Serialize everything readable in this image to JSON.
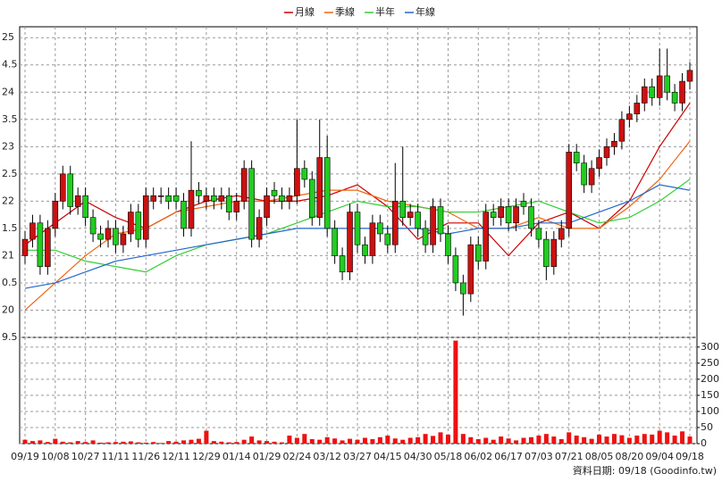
{
  "chart_data": [
    {
      "type": "candlestick",
      "categories": [
        "09/19",
        null,
        null,
        null,
        "10/08",
        null,
        null,
        null,
        "10/27",
        null,
        null,
        null,
        "11/11",
        null,
        null,
        null,
        "11/26",
        null,
        null,
        null,
        "12/11",
        null,
        null,
        null,
        "12/29",
        null,
        null,
        null,
        "01/14",
        null,
        null,
        null,
        "01/29",
        null,
        null,
        null,
        "02/24",
        null,
        null,
        null,
        "03/12",
        null,
        null,
        null,
        "03/27",
        null,
        null,
        null,
        "04/15",
        null,
        null,
        null,
        "04/30",
        null,
        null,
        null,
        "05/18",
        null,
        null,
        null,
        "06/02",
        null,
        null,
        null,
        "06/17",
        null,
        null,
        null,
        "07/03",
        null,
        null,
        null,
        "07/21",
        null,
        null,
        null,
        "08/05",
        null,
        null,
        null,
        "08/20",
        null,
        null,
        null,
        "09/04",
        null,
        null,
        null,
        "09/18"
      ],
      "open": [
        21.0,
        21.3,
        21.6,
        20.8,
        21.5,
        22.0,
        22.5,
        21.9,
        22.1,
        21.7,
        21.4,
        21.3,
        21.5,
        21.2,
        21.4,
        21.8,
        21.3,
        22.0,
        22.1,
        22.1,
        22.1,
        22.0,
        21.5,
        22.2,
        22.0,
        22.1,
        22.0,
        22.1,
        21.8,
        22.0,
        22.6,
        21.3,
        21.7,
        22.2,
        22.1,
        22.0,
        22.1,
        22.6,
        22.4,
        21.7,
        22.8,
        21.5,
        21.0,
        20.7,
        21.8,
        21.2,
        21.0,
        21.6,
        21.4,
        21.2,
        22.0,
        21.7,
        21.8,
        21.5,
        21.2,
        21.9,
        21.4,
        21.0,
        20.5,
        20.3,
        21.2,
        20.9,
        21.8,
        21.7,
        21.9,
        21.6,
        22.0,
        21.9,
        21.5,
        21.3,
        20.8,
        21.3,
        21.5,
        22.9,
        22.7,
        22.3,
        22.6,
        22.8,
        23.0,
        23.1,
        23.5,
        23.6,
        23.8,
        24.1,
        23.9,
        24.3,
        24.0,
        23.8,
        24.2
      ],
      "high": [
        21.45,
        21.75,
        21.75,
        21.65,
        22.15,
        22.65,
        22.65,
        22.25,
        22.25,
        21.85,
        21.55,
        21.65,
        21.65,
        21.55,
        21.95,
        21.95,
        22.25,
        22.25,
        22.25,
        22.25,
        22.25,
        22.15,
        23.1,
        22.35,
        22.25,
        22.25,
        22.25,
        22.25,
        22.15,
        22.75,
        22.75,
        21.85,
        22.25,
        22.35,
        22.25,
        22.25,
        23.5,
        22.75,
        22.55,
        23.5,
        23.2,
        21.65,
        21.15,
        21.95,
        21.95,
        21.35,
        21.75,
        21.75,
        21.55,
        22.7,
        23.0,
        21.95,
        21.95,
        21.65,
        22.05,
        22.05,
        21.55,
        21.15,
        20.65,
        21.35,
        21.35,
        21.95,
        21.95,
        22.05,
        22.05,
        22.05,
        22.15,
        22.05,
        21.65,
        21.45,
        21.45,
        21.65,
        23.05,
        23.05,
        22.85,
        22.75,
        22.95,
        23.15,
        23.25,
        23.65,
        23.75,
        23.95,
        24.25,
        24.25,
        24.8,
        24.8,
        24.15,
        24.35,
        24.55
      ],
      "low": [
        20.85,
        21.15,
        20.65,
        20.65,
        21.35,
        21.85,
        21.75,
        21.75,
        21.55,
        21.25,
        21.15,
        21.15,
        21.05,
        21.05,
        21.25,
        21.15,
        21.15,
        21.85,
        21.95,
        21.85,
        21.85,
        21.35,
        21.35,
        21.95,
        21.85,
        21.85,
        21.85,
        21.65,
        21.65,
        21.85,
        21.15,
        21.15,
        21.55,
        21.95,
        21.85,
        21.85,
        21.95,
        22.25,
        21.55,
        21.55,
        21.35,
        20.85,
        20.55,
        20.55,
        21.05,
        20.85,
        20.85,
        21.25,
        21.05,
        21.05,
        21.55,
        21.55,
        21.35,
        21.05,
        21.05,
        21.25,
        20.85,
        20.35,
        19.9,
        20.15,
        20.75,
        20.75,
        21.55,
        21.55,
        21.45,
        21.45,
        21.75,
        21.35,
        21.15,
        20.55,
        20.65,
        21.15,
        21.35,
        22.55,
        22.15,
        22.15,
        22.45,
        22.65,
        22.85,
        22.95,
        23.35,
        23.45,
        23.65,
        23.75,
        23.75,
        23.85,
        23.65,
        23.65,
        24.05
      ],
      "close": [
        21.3,
        21.6,
        20.8,
        21.5,
        22.0,
        22.5,
        21.9,
        22.1,
        21.7,
        21.4,
        21.3,
        21.5,
        21.2,
        21.4,
        21.8,
        21.3,
        22.1,
        22.1,
        22.1,
        22.0,
        22.0,
        21.5,
        22.2,
        22.1,
        22.1,
        22.0,
        22.1,
        21.8,
        22.0,
        22.6,
        21.3,
        21.7,
        22.1,
        22.1,
        22.0,
        22.1,
        22.6,
        22.4,
        21.7,
        22.8,
        21.5,
        21.0,
        20.7,
        21.8,
        21.2,
        21.0,
        21.6,
        21.4,
        21.2,
        22.0,
        21.7,
        21.8,
        21.5,
        21.2,
        21.9,
        21.4,
        21.0,
        20.5,
        20.3,
        21.2,
        20.9,
        21.8,
        21.7,
        21.9,
        21.6,
        21.9,
        21.9,
        21.5,
        21.3,
        20.8,
        21.3,
        21.5,
        22.9,
        22.7,
        22.3,
        22.6,
        22.8,
        23.0,
        23.1,
        23.5,
        23.6,
        23.8,
        24.1,
        23.9,
        24.3,
        24.0,
        23.8,
        24.2,
        24.4
      ],
      "up_color": "#cc1111",
      "down_color": "#22cc22",
      "series": [
        {
          "name": "月線",
          "color": "#cc0000",
          "x": [
            0,
            4,
            8,
            12,
            16,
            20,
            24,
            28,
            32,
            36,
            40,
            44,
            48,
            52,
            56,
            60,
            64,
            68,
            72,
            76,
            80,
            84,
            88
          ],
          "values": [
            21.2,
            21.6,
            22.0,
            21.7,
            21.5,
            21.8,
            22.0,
            22.1,
            22.0,
            22.0,
            22.1,
            22.3,
            21.9,
            21.3,
            21.6,
            21.6,
            21.0,
            21.6,
            21.8,
            21.5,
            22.0,
            23.0,
            23.8
          ]
        },
        {
          "name": "季線",
          "color": "#ee6611",
          "x": [
            0,
            4,
            8,
            12,
            16,
            20,
            24,
            28,
            32,
            36,
            40,
            44,
            48,
            52,
            56,
            60,
            64,
            68,
            72,
            76,
            80,
            84,
            88
          ],
          "values": [
            20.0,
            20.5,
            21.0,
            21.4,
            21.5,
            21.8,
            21.9,
            22.0,
            22.0,
            22.1,
            22.2,
            22.2,
            22.0,
            21.9,
            21.8,
            21.5,
            21.5,
            21.7,
            21.5,
            21.5,
            21.9,
            22.4,
            23.1
          ]
        },
        {
          "name": "半年",
          "color": "#33cc33",
          "x": [
            0,
            4,
            8,
            12,
            16,
            20,
            24,
            28,
            32,
            36,
            40,
            44,
            48,
            52,
            56,
            60,
            64,
            68,
            72,
            76,
            80,
            84,
            88
          ],
          "values": [
            21.1,
            21.1,
            20.9,
            20.8,
            20.7,
            21.0,
            21.2,
            21.3,
            21.4,
            21.6,
            21.8,
            22.0,
            21.9,
            21.9,
            21.8,
            21.8,
            21.9,
            22.0,
            21.8,
            21.6,
            21.7,
            22.0,
            22.4
          ]
        },
        {
          "name": "年線",
          "color": "#2266cc",
          "x": [
            0,
            4,
            8,
            12,
            16,
            20,
            24,
            28,
            32,
            36,
            40,
            44,
            48,
            52,
            56,
            60,
            64,
            68,
            72,
            76,
            80,
            84,
            88
          ],
          "values": [
            20.4,
            20.5,
            20.7,
            20.9,
            21.0,
            21.1,
            21.2,
            21.3,
            21.4,
            21.5,
            21.5,
            21.5,
            21.5,
            21.5,
            21.4,
            21.5,
            21.5,
            21.6,
            21.6,
            21.8,
            22.0,
            22.3,
            22.2
          ]
        }
      ],
      "ylim": [
        19.5,
        25.2
      ],
      "yticks": [
        25,
        {
          "value": 24.5,
          "label": "4.5"
        },
        24,
        {
          "value": 23.5,
          "label": "3.5"
        },
        23,
        {
          "value": 22.5,
          "label": "2.5"
        },
        22,
        {
          "value": 21.5,
          "label": "1.5"
        },
        21,
        {
          "value": 20.5,
          "label": "0.5"
        },
        20,
        {
          "value": 19.5,
          "label": "9.5"
        }
      ],
      "grid": true
    },
    {
      "type": "bar",
      "values": [
        12,
        8,
        10,
        5,
        15,
        6,
        4,
        8,
        5,
        10,
        3,
        4,
        5,
        6,
        7,
        4,
        3,
        5,
        2,
        8,
        6,
        10,
        12,
        15,
        40,
        8,
        6,
        4,
        5,
        12,
        22,
        10,
        8,
        6,
        4,
        25,
        18,
        30,
        14,
        12,
        20,
        16,
        10,
        15,
        12,
        18,
        14,
        20,
        25,
        16,
        12,
        18,
        20,
        30,
        24,
        35,
        28,
        320,
        30,
        20,
        14,
        18,
        12,
        22,
        16,
        10,
        18,
        20,
        25,
        30,
        22,
        14,
        35,
        25,
        20,
        15,
        28,
        22,
        30,
        26,
        18,
        25,
        30,
        28,
        40,
        35,
        25,
        38,
        22
      ],
      "color": "#ee1111",
      "ylim": [
        0,
        330
      ],
      "yticks": [
        0,
        50,
        100,
        150,
        200,
        250,
        300
      ],
      "grid": true
    }
  ],
  "footer": "資料日期: 09/18 (Goodinfo.tw)"
}
